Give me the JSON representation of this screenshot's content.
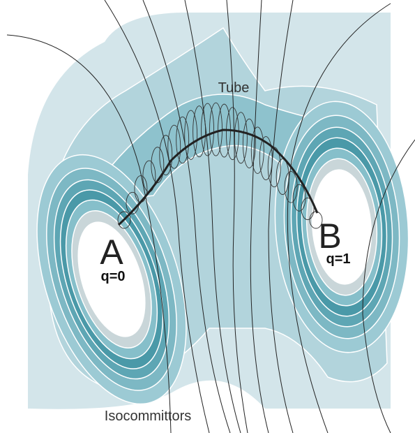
{
  "labels": {
    "tube": "Tube",
    "state_a": "A",
    "q_a": "q=0",
    "state_b": "B",
    "q_b": "q=1",
    "isocommittors": "Isocommittors"
  }
}
